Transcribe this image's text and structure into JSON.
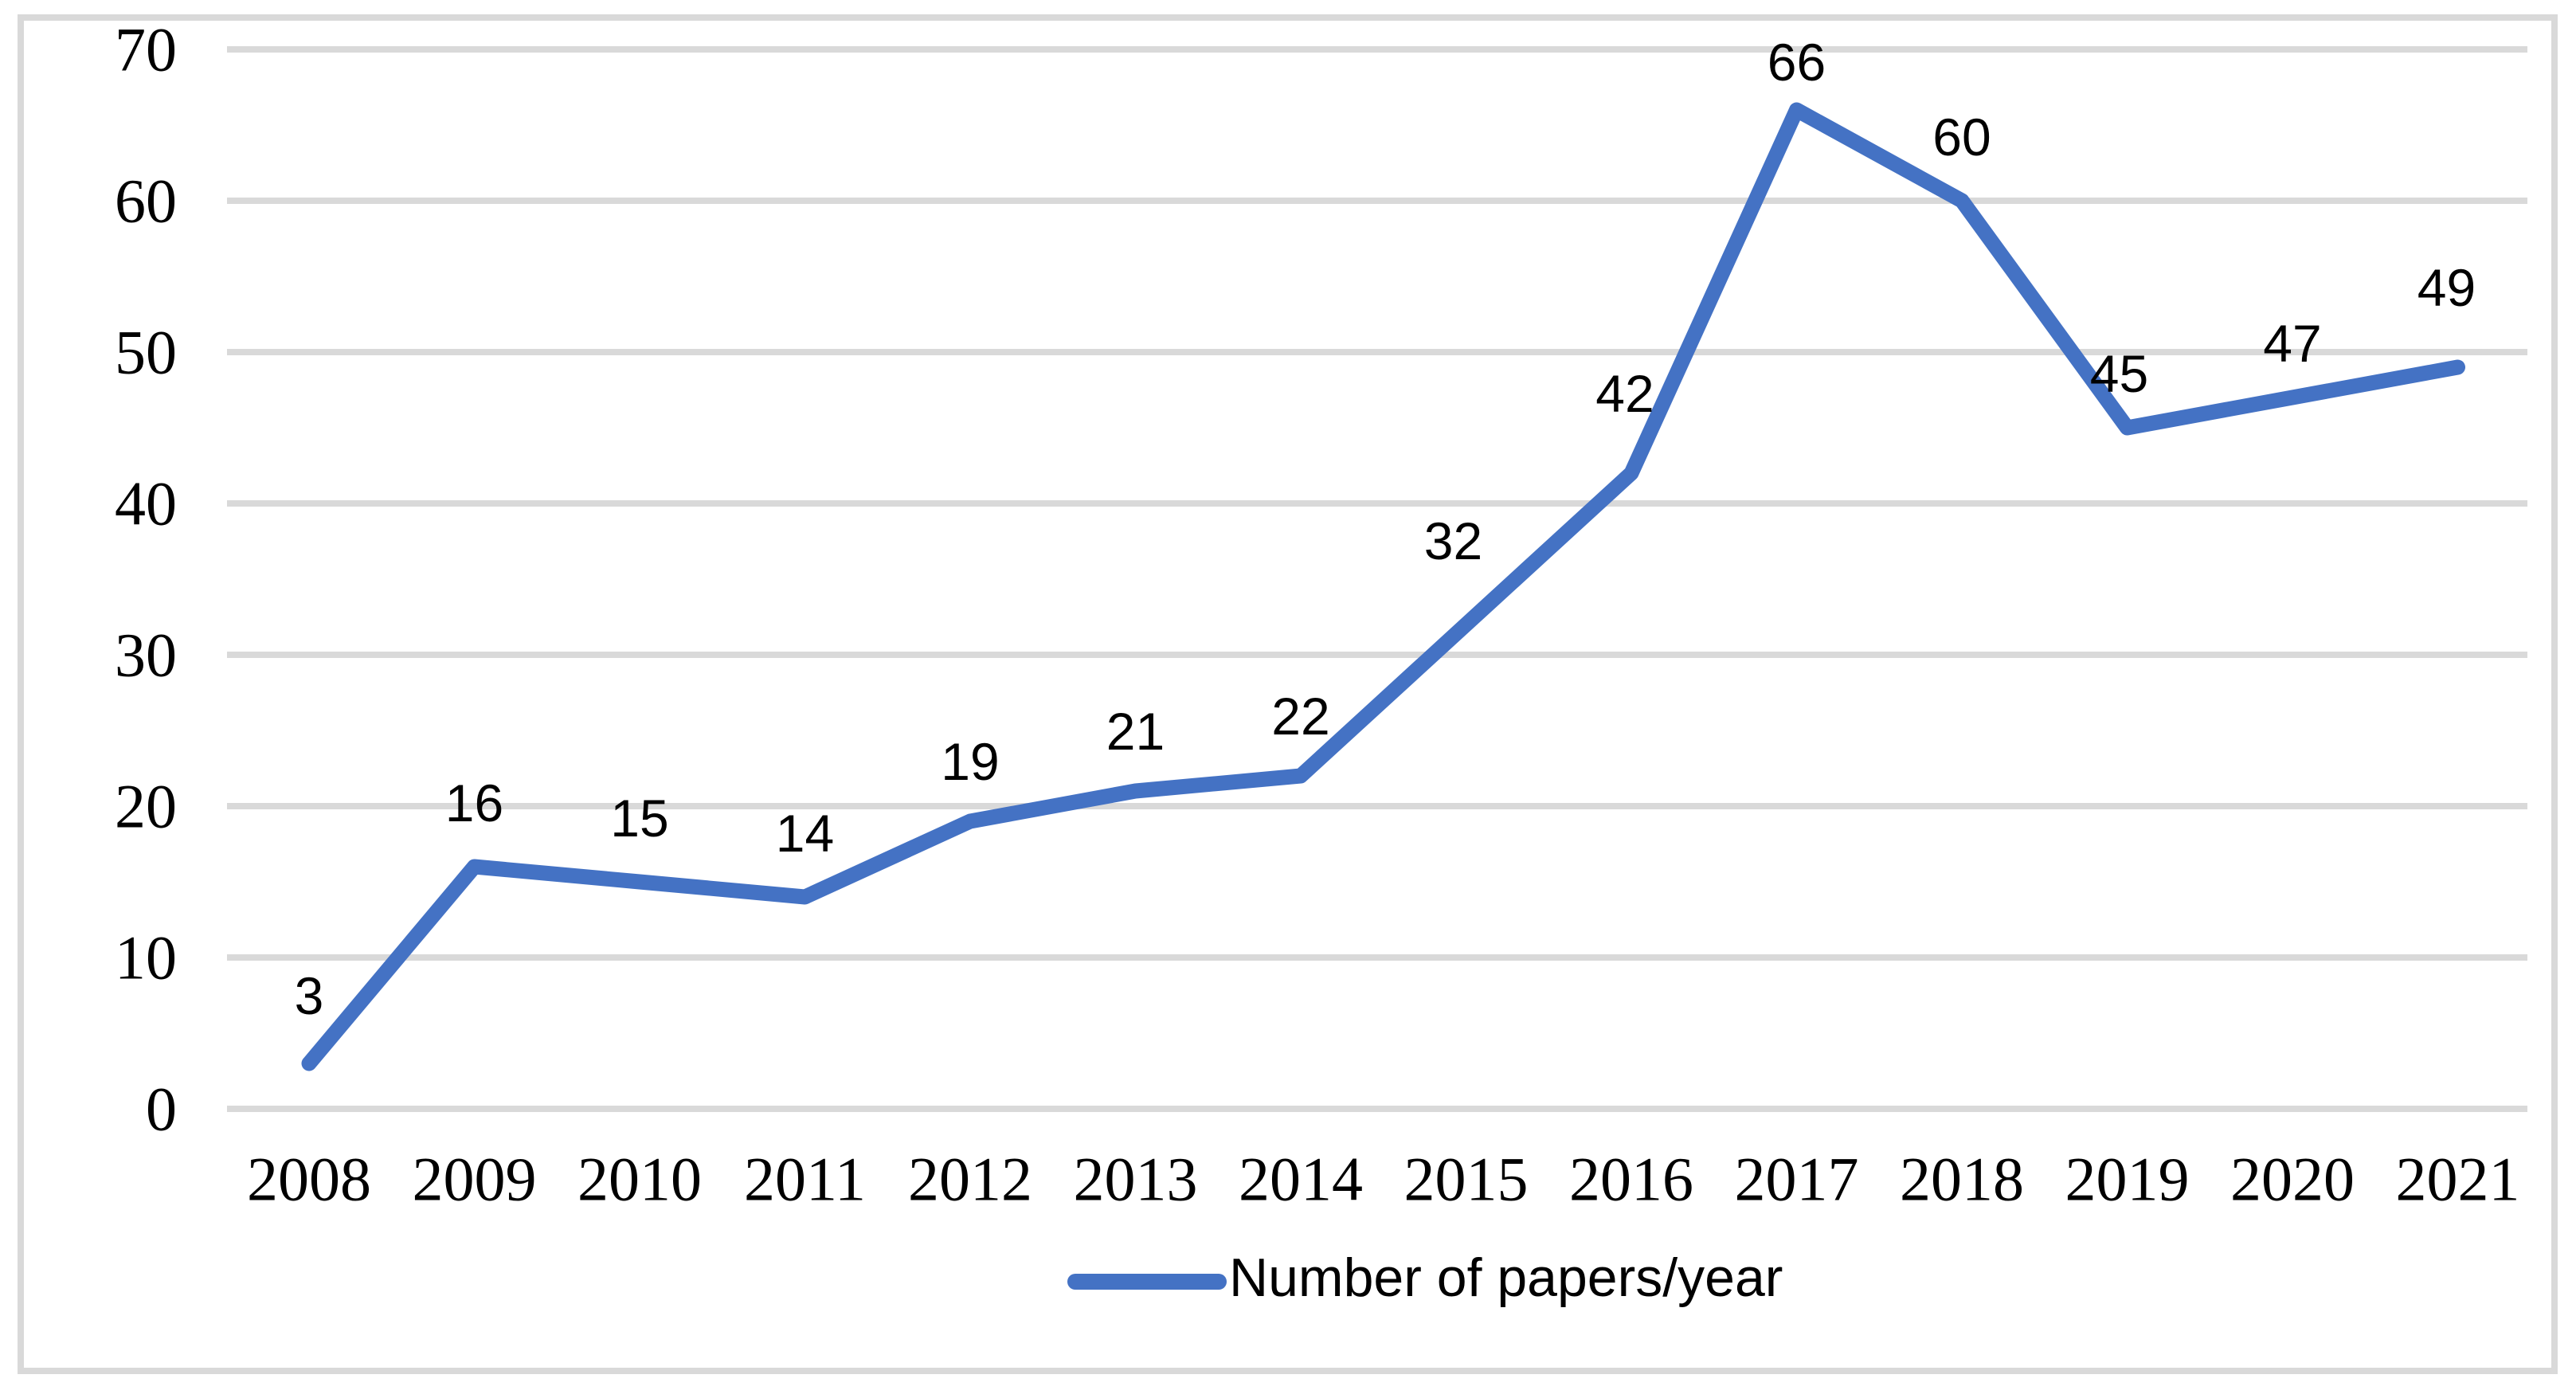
{
  "chart_data": {
    "type": "line",
    "title": "",
    "categories": [
      "2008",
      "2009",
      "2010",
      "2011",
      "2012",
      "2013",
      "2014",
      "2015",
      "2016",
      "2017",
      "2018",
      "2019",
      "2020",
      "2021"
    ],
    "series": [
      {
        "name": "Number of papers/year",
        "values": [
          3,
          16,
          15,
          14,
          19,
          21,
          22,
          32,
          42,
          66,
          60,
          45,
          47,
          49
        ]
      }
    ],
    "xlabel": "",
    "ylabel": "",
    "ylim": [
      0,
      70
    ],
    "y_ticks": [
      0,
      10,
      20,
      30,
      40,
      50,
      60,
      70
    ],
    "grid": "horizontal",
    "data_labels": "above",
    "legend_position": "bottom-center",
    "colors": {
      "series": "#4472C4",
      "gridline": "#D9D9D9",
      "figure_border": "#D9D9D9",
      "text": "#000000",
      "background": "#FFFFFF"
    }
  },
  "legend": {
    "label": "Number of papers/year"
  }
}
